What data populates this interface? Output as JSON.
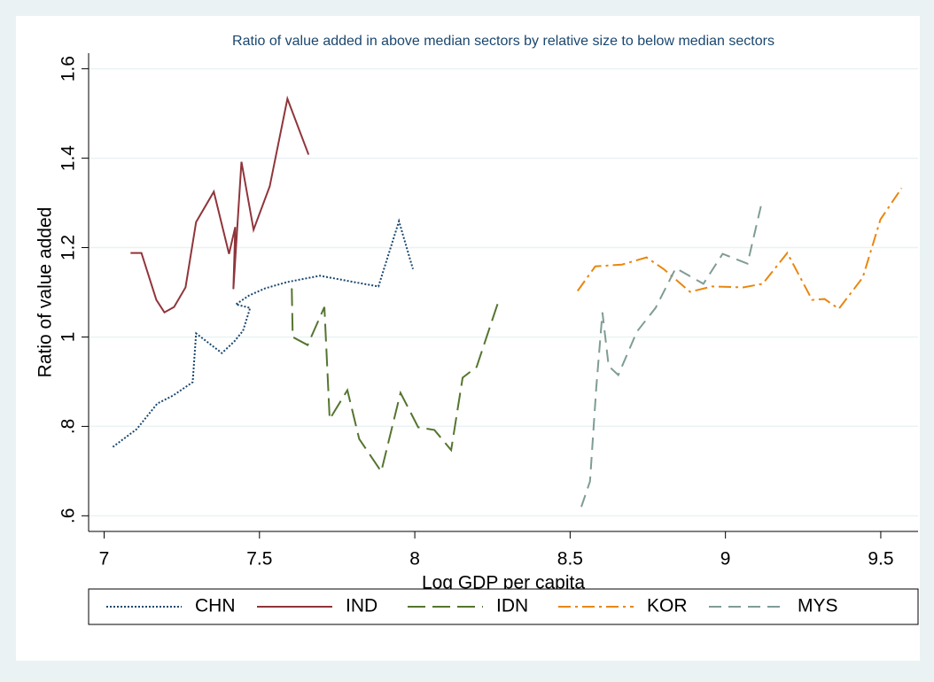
{
  "chart_data": {
    "type": "line",
    "title": "Ratio of value added in above median sectors by relative size to below median sectors",
    "x_label": "Log GDP per capita",
    "y_label": "Ratio of value added",
    "xlim": [
      6.95,
      9.62
    ],
    "ylim": [
      0.565,
      1.635
    ],
    "xticks": [
      7,
      7.5,
      8,
      8.5,
      9,
      9.5
    ],
    "yticks": [
      {
        "value": 0.6,
        "label": ".6"
      },
      {
        "value": 0.8,
        "label": ".8"
      },
      1,
      1.2,
      1.4,
      1.6
    ],
    "grid": true,
    "series": [
      {
        "name": "CHN",
        "color": "#1a476f",
        "style": "dotted",
        "x": [
          7.028,
          7.105,
          7.171,
          7.222,
          7.285,
          7.296,
          7.379,
          7.419,
          7.447,
          7.47,
          7.424,
          7.467,
          7.519,
          7.59,
          7.695,
          7.803,
          7.883,
          7.949,
          7.994
        ],
        "values": [
          0.754,
          0.794,
          0.851,
          0.869,
          0.899,
          1.008,
          0.964,
          0.99,
          1.014,
          1.065,
          1.073,
          1.093,
          1.109,
          1.123,
          1.137,
          1.123,
          1.113,
          1.259,
          1.152
        ]
      },
      {
        "name": "IND",
        "color": "#90353b",
        "style": "solid",
        "x": [
          7.085,
          7.12,
          7.168,
          7.194,
          7.225,
          7.262,
          7.296,
          7.353,
          7.402,
          7.422,
          7.416,
          7.442,
          7.481,
          7.533,
          7.59,
          7.658
        ],
        "values": [
          1.188,
          1.188,
          1.083,
          1.055,
          1.067,
          1.111,
          1.257,
          1.325,
          1.186,
          1.246,
          1.107,
          1.392,
          1.24,
          1.337,
          1.533,
          1.408
        ]
      },
      {
        "name": "IDN",
        "color": "#55752f",
        "style": "longdash",
        "x": [
          7.604,
          7.607,
          7.655,
          7.709,
          7.726,
          7.783,
          7.821,
          7.892,
          7.954,
          8.011,
          8.063,
          8.117,
          8.154,
          8.199,
          8.268
        ],
        "values": [
          1.109,
          1.0,
          0.982,
          1.067,
          0.816,
          0.881,
          0.772,
          0.699,
          0.875,
          0.798,
          0.792,
          0.747,
          0.909,
          0.933,
          1.077
        ]
      },
      {
        "name": "KOR",
        "color": "#e8870e",
        "style": "dashdot",
        "x": [
          8.524,
          8.581,
          8.667,
          8.746,
          8.801,
          8.886,
          8.957,
          9.057,
          9.12,
          9.199,
          9.279,
          9.319,
          9.365,
          9.442,
          9.499,
          9.567
        ],
        "values": [
          1.103,
          1.158,
          1.162,
          1.178,
          1.152,
          1.101,
          1.113,
          1.111,
          1.119,
          1.188,
          1.083,
          1.085,
          1.063,
          1.133,
          1.263,
          1.333
        ]
      },
      {
        "name": "MYS",
        "color": "#7f9c96",
        "style": "dash",
        "x": [
          8.536,
          8.564,
          8.584,
          8.604,
          8.624,
          8.655,
          8.715,
          8.775,
          8.84,
          8.929,
          8.991,
          9.071,
          9.117
        ],
        "values": [
          0.62,
          0.677,
          0.885,
          1.055,
          0.935,
          0.915,
          1.012,
          1.065,
          1.154,
          1.119,
          1.186,
          1.164,
          1.301
        ]
      }
    ]
  }
}
